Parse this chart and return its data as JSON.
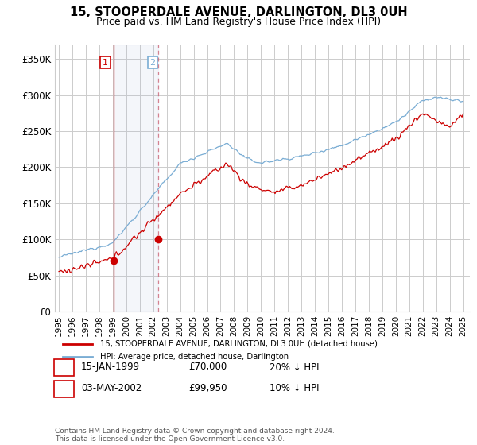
{
  "title": "15, STOOPERDALE AVENUE, DARLINGTON, DL3 0UH",
  "subtitle": "Price paid vs. HM Land Registry's House Price Index (HPI)",
  "ylim": [
    0,
    370000
  ],
  "yticks": [
    0,
    50000,
    100000,
    150000,
    200000,
    250000,
    300000,
    350000
  ],
  "ytick_labels": [
    "£0",
    "£50K",
    "£100K",
    "£150K",
    "£200K",
    "£250K",
    "£300K",
    "£350K"
  ],
  "transaction1_date": 1999.04,
  "transaction1_price": 70000,
  "transaction2_date": 2002.35,
  "transaction2_price": 99950,
  "price_paid_color": "#cc0000",
  "hpi_color": "#7aadd4",
  "vline1_color": "#cc0000",
  "vline2_color": "#cc6677",
  "background_color": "#ffffff",
  "plot_bg_color": "#ffffff",
  "grid_color": "#cccccc",
  "legend1_label": "15, STOOPERDALE AVENUE, DARLINGTON, DL3 0UH (detached house)",
  "legend2_label": "HPI: Average price, detached house, Darlington",
  "t1_date_str": "15-JAN-1999",
  "t1_price_str": "£70,000",
  "t1_hpi_str": "20% ↓ HPI",
  "t2_date_str": "03-MAY-2002",
  "t2_price_str": "£99,950",
  "t2_hpi_str": "10% ↓ HPI",
  "footer": "Contains HM Land Registry data © Crown copyright and database right 2024.\nThis data is licensed under the Open Government Licence v3.0.",
  "title_fontsize": 10.5,
  "subtitle_fontsize": 9,
  "tick_fontsize": 8.5,
  "xstart": 1995,
  "xend": 2025
}
